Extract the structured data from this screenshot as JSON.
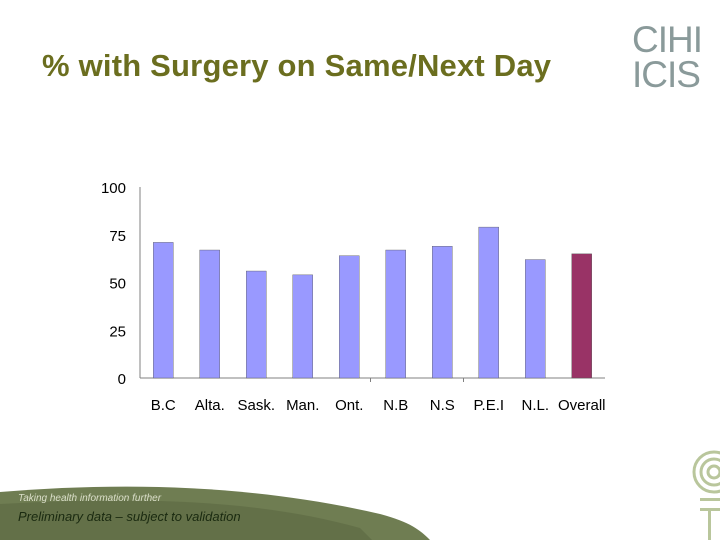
{
  "header": {
    "title": "% with Surgery on Same/Next Day",
    "logo_top": "CIHI",
    "logo_bottom": "ICIS"
  },
  "footer": {
    "note": "Preliminary data – subject to validation",
    "tagline": "Taking health information further"
  },
  "colors": {
    "title": "#6b6e1f",
    "bar": "#9999ff",
    "bar_highlight": "#993366",
    "footer": "#6f7d52",
    "logo": "#8a9a9a"
  },
  "chart_data": {
    "type": "bar",
    "title": "",
    "xlabel": "",
    "ylabel": "",
    "ylim": [
      0,
      100
    ],
    "yticks": [
      "0",
      "25",
      "50",
      "75",
      "100"
    ],
    "categories": [
      "B.C",
      "Alta.",
      "Sask.",
      "Man.",
      "Ont.",
      "N.B",
      "N.S",
      "P.E.I",
      "N.L.",
      "Overall"
    ],
    "values": [
      71,
      67,
      56,
      54,
      64,
      67,
      69,
      79,
      62,
      65
    ],
    "highlight_category": "Overall",
    "grid": false,
    "legend": "none"
  }
}
